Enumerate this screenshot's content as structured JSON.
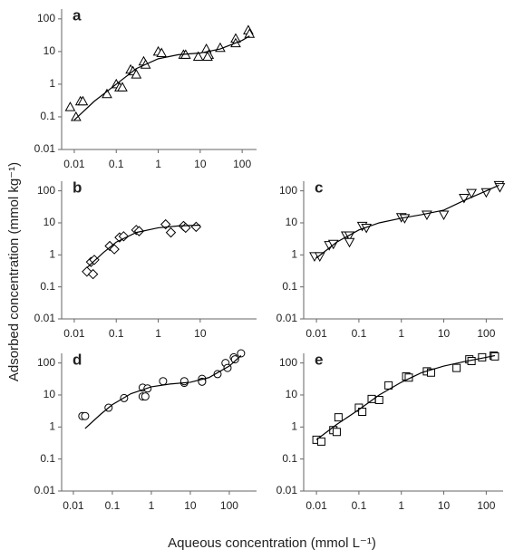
{
  "x_label": "Aqueous concentration (mmol L⁻¹)",
  "y_label": "Adsorbed concentration (mmol kg⁻¹)",
  "chart_data": [
    {
      "type": "scatter",
      "title": "a",
      "log_x": true,
      "log_y": true,
      "xlim": [
        0.005,
        220
      ],
      "ylim": [
        0.01,
        200
      ],
      "xticks": [
        0.01,
        0.1,
        1,
        10,
        100
      ],
      "yticks": [
        0.01,
        0.1,
        1,
        10,
        100
      ],
      "series": [
        {
          "type": "scatter",
          "marker": "triangle",
          "color": "#000000",
          "x": [
            0.008,
            0.011,
            0.014,
            0.016,
            0.06,
            0.1,
            0.12,
            0.14,
            0.22,
            0.25,
            0.3,
            0.45,
            0.5,
            1.0,
            1.2,
            4,
            4.5,
            9,
            14,
            16,
            15,
            30,
            70,
            70,
            140,
            150
          ],
          "values": [
            0.2,
            0.1,
            0.3,
            0.3,
            0.5,
            1.0,
            0.8,
            0.8,
            2.8,
            2.5,
            2.0,
            5,
            4,
            10,
            9,
            8,
            8,
            7,
            12,
            8,
            7,
            13,
            25,
            18,
            45,
            35
          ]
        },
        {
          "type": "line",
          "color": "#000000",
          "x": [
            0.01,
            0.03,
            0.1,
            0.3,
            1,
            3,
            10,
            30,
            100,
            150
          ],
          "values": [
            0.08,
            0.3,
            1,
            3,
            6,
            8,
            9,
            12,
            22,
            30
          ]
        }
      ]
    },
    {
      "type": "scatter",
      "title": "b",
      "log_x": true,
      "log_y": true,
      "xlim": [
        0.005,
        220
      ],
      "ylim": [
        0.01,
        200
      ],
      "xticks": [
        0.01,
        0.1,
        1,
        10
      ],
      "yticks": [
        0.01,
        0.1,
        1,
        10,
        100
      ],
      "series": [
        {
          "type": "scatter",
          "marker": "diamond",
          "color": "#000000",
          "x": [
            0.02,
            0.025,
            0.03,
            0.028,
            0.07,
            0.09,
            0.12,
            0.15,
            0.3,
            0.35,
            1.5,
            2,
            4,
            4.5,
            8
          ],
          "values": [
            0.3,
            0.6,
            0.7,
            0.25,
            1.9,
            1.5,
            3.5,
            3.8,
            6,
            5.5,
            9,
            5,
            8,
            7,
            7.5
          ]
        },
        {
          "type": "line",
          "color": "#000000",
          "x": [
            0.02,
            0.05,
            0.1,
            0.3,
            1,
            3,
            10
          ],
          "values": [
            0.4,
            1.2,
            2.5,
            5,
            7,
            8,
            8.5
          ]
        }
      ]
    },
    {
      "type": "scatter",
      "title": "c",
      "log_x": true,
      "log_y": true,
      "xlim": [
        0.005,
        250
      ],
      "ylim": [
        0.01,
        200
      ],
      "xticks": [
        0.01,
        0.1,
        1,
        10,
        100
      ],
      "yticks": [
        0.01,
        0.1,
        1,
        10,
        100
      ],
      "series": [
        {
          "type": "scatter",
          "marker": "triangle-down",
          "color": "#000000",
          "x": [
            0.009,
            0.012,
            0.02,
            0.025,
            0.05,
            0.06,
            0.06,
            0.12,
            0.15,
            1,
            1.2,
            4,
            10,
            30,
            45,
            100,
            200,
            210
          ],
          "values": [
            0.9,
            0.9,
            2,
            2.2,
            4,
            4,
            2.5,
            8,
            7,
            15,
            14,
            18,
            18,
            60,
            85,
            90,
            150,
            130
          ]
        },
        {
          "type": "line",
          "color": "#000000",
          "x": [
            0.01,
            0.03,
            0.1,
            0.3,
            1,
            3,
            10,
            30,
            100,
            200
          ],
          "values": [
            0.8,
            2.5,
            6,
            10,
            14,
            18,
            25,
            50,
            100,
            150
          ]
        }
      ]
    },
    {
      "type": "scatter",
      "title": "d",
      "log_x": true,
      "log_y": true,
      "xlim": [
        0.005,
        500
      ],
      "ylim": [
        0.01,
        200
      ],
      "xticks": [
        0.01,
        0.1,
        1,
        10,
        100
      ],
      "yticks": [
        0.01,
        0.1,
        1,
        10,
        100
      ],
      "series": [
        {
          "type": "scatter",
          "marker": "circle",
          "color": "#000000",
          "x": [
            0.017,
            0.02,
            0.08,
            0.2,
            0.6,
            0.6,
            0.7,
            0.8,
            2,
            7,
            7,
            20,
            20,
            20,
            50,
            80,
            90,
            130,
            140,
            200
          ],
          "values": [
            2.2,
            2.2,
            4,
            8,
            17,
            9,
            9,
            16,
            27,
            24,
            27,
            27,
            32,
            26,
            45,
            100,
            70,
            150,
            130,
            200
          ]
        },
        {
          "type": "line",
          "color": "#000000",
          "x": [
            0.02,
            0.05,
            0.1,
            0.3,
            1,
            3,
            10,
            30,
            100,
            200
          ],
          "values": [
            0.9,
            2.5,
            5,
            11,
            18,
            22,
            25,
            35,
            80,
            170
          ]
        }
      ]
    },
    {
      "type": "scatter",
      "title": "e",
      "log_x": true,
      "log_y": true,
      "xlim": [
        0.005,
        250
      ],
      "ylim": [
        0.01,
        200
      ],
      "xticks": [
        0.01,
        0.1,
        1,
        10,
        100
      ],
      "yticks": [
        0.01,
        0.1,
        1,
        10,
        100
      ],
      "series": [
        {
          "type": "scatter",
          "marker": "square",
          "color": "#000000",
          "x": [
            0.01,
            0.013,
            0.025,
            0.03,
            0.033,
            0.1,
            0.12,
            0.2,
            0.3,
            0.5,
            1.3,
            1.5,
            4,
            5,
            20,
            40,
            45,
            80,
            150,
            160
          ],
          "values": [
            0.4,
            0.35,
            0.8,
            0.7,
            2,
            4,
            3,
            7.5,
            7,
            20,
            38,
            35,
            55,
            50,
            70,
            130,
            115,
            150,
            170,
            160
          ]
        },
        {
          "type": "line",
          "color": "#000000",
          "x": [
            0.01,
            0.03,
            0.1,
            0.3,
            1,
            3,
            10,
            30,
            100,
            160
          ],
          "values": [
            0.4,
            1.2,
            3.5,
            10,
            25,
            50,
            80,
            110,
            150,
            170
          ]
        }
      ]
    }
  ]
}
